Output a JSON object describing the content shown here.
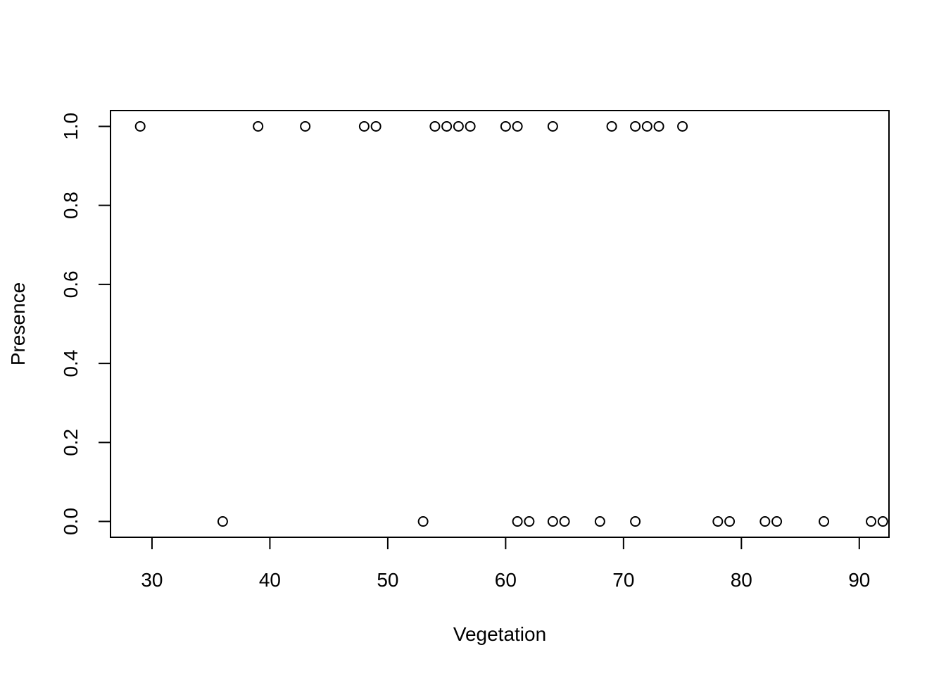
{
  "chart_data": {
    "type": "scatter",
    "title": "",
    "xlabel": "Vegetation",
    "ylabel": "Presence",
    "xlim": [
      26.48,
      92.52
    ],
    "ylim": [
      -0.04,
      1.04
    ],
    "x_ticks": [
      30,
      40,
      50,
      60,
      70,
      80,
      90
    ],
    "y_ticks": [
      0.0,
      0.2,
      0.4,
      0.6,
      0.8,
      1.0
    ],
    "x_tick_labels": [
      "30",
      "40",
      "50",
      "60",
      "70",
      "80",
      "90"
    ],
    "y_tick_labels": [
      "0.0",
      "0.2",
      "0.4",
      "0.6",
      "0.8",
      "1.0"
    ],
    "grid": false,
    "marker": "open-circle",
    "colors": {
      "point": "#000000",
      "axis": "#000000",
      "background": "#ffffff"
    },
    "points": [
      {
        "x": 29,
        "y": 1
      },
      {
        "x": 39,
        "y": 1
      },
      {
        "x": 43,
        "y": 1
      },
      {
        "x": 48,
        "y": 1
      },
      {
        "x": 49,
        "y": 1
      },
      {
        "x": 54,
        "y": 1
      },
      {
        "x": 55,
        "y": 1
      },
      {
        "x": 56,
        "y": 1
      },
      {
        "x": 57,
        "y": 1
      },
      {
        "x": 60,
        "y": 1
      },
      {
        "x": 61,
        "y": 1
      },
      {
        "x": 64,
        "y": 1
      },
      {
        "x": 69,
        "y": 1
      },
      {
        "x": 71,
        "y": 1
      },
      {
        "x": 72,
        "y": 1
      },
      {
        "x": 73,
        "y": 1
      },
      {
        "x": 75,
        "y": 1
      },
      {
        "x": 36,
        "y": 0
      },
      {
        "x": 53,
        "y": 0
      },
      {
        "x": 61,
        "y": 0
      },
      {
        "x": 62,
        "y": 0
      },
      {
        "x": 64,
        "y": 0
      },
      {
        "x": 65,
        "y": 0
      },
      {
        "x": 68,
        "y": 0
      },
      {
        "x": 71,
        "y": 0
      },
      {
        "x": 78,
        "y": 0
      },
      {
        "x": 79,
        "y": 0
      },
      {
        "x": 82,
        "y": 0
      },
      {
        "x": 83,
        "y": 0
      },
      {
        "x": 87,
        "y": 0
      },
      {
        "x": 91,
        "y": 0
      },
      {
        "x": 92,
        "y": 0
      }
    ]
  }
}
